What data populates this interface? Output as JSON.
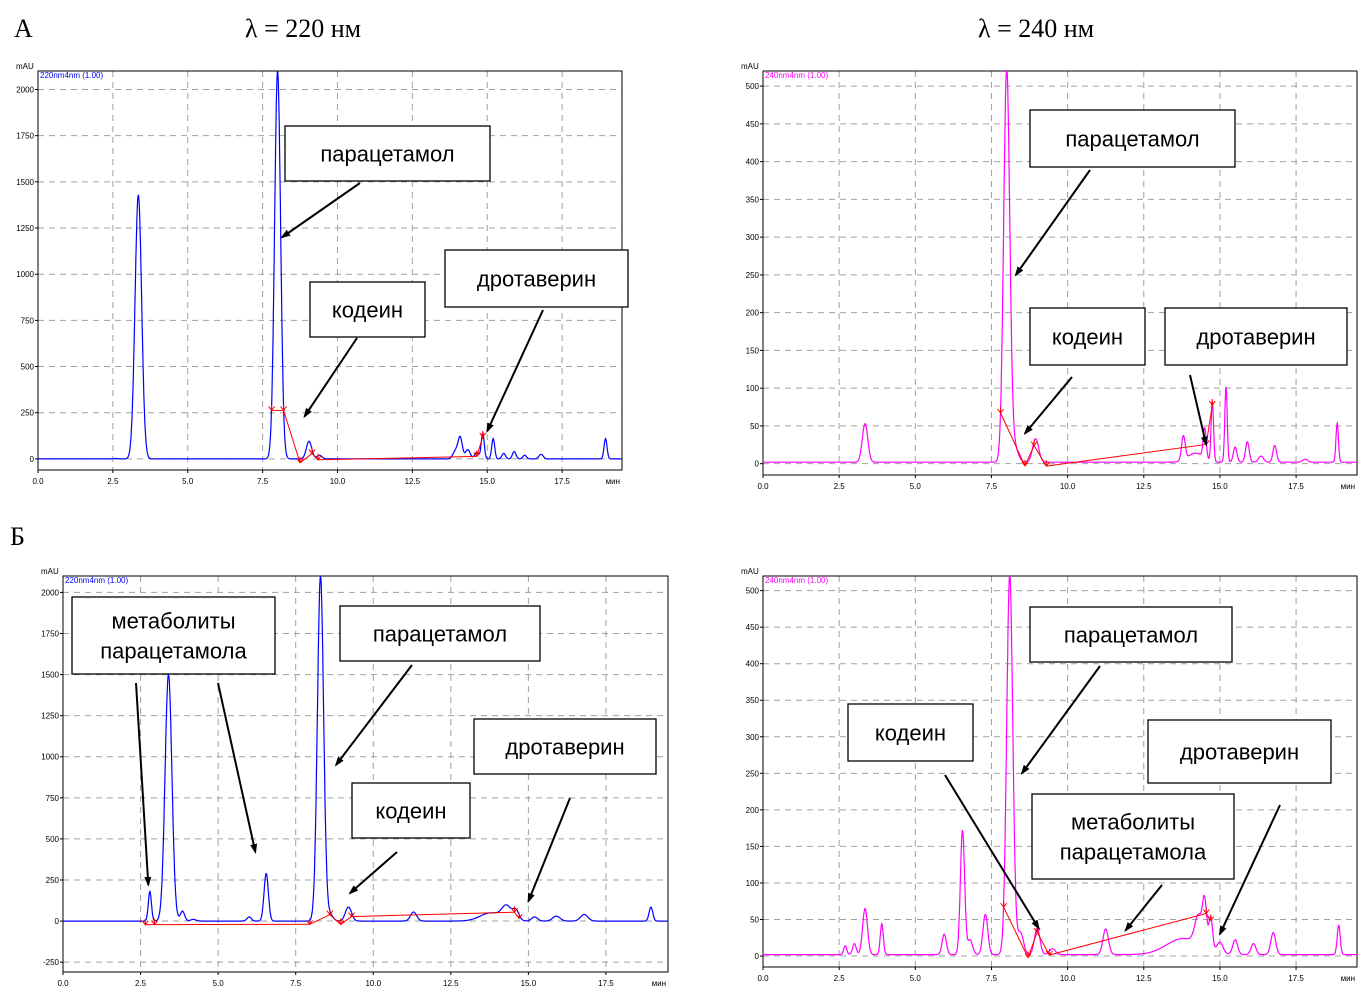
{
  "headers": {
    "section_a": "А",
    "section_b": "Б",
    "wavelength_220": "λ = 220 нм",
    "wavelength_240": "λ = 240 нм"
  },
  "colors": {
    "trace_220": "#0000ff",
    "trace_240": "#ff00ff",
    "integration_marks": "#ff0000",
    "grid": "#a0a0a0"
  },
  "chart_data": [
    {
      "id": "A-220",
      "type": "line",
      "channel_label": "220nm4nm (1.00)",
      "ylabel": "mAU",
      "xunit": "мин",
      "xlim": [
        0,
        19.5
      ],
      "ylim": [
        -60,
        2100
      ],
      "xticks": [
        "0.0",
        "2.5",
        "5.0",
        "7.5",
        "10.0",
        "12.5",
        "15.0",
        "17.5"
      ],
      "yticks": [
        0,
        250,
        500,
        750,
        1000,
        1250,
        1500,
        1750,
        2000
      ],
      "baseline": 0,
      "peaks": [
        [
          2.6,
          2,
          0.07
        ],
        [
          3.35,
          1430,
          0.11
        ],
        [
          8.0,
          2100,
          0.1
        ],
        [
          9.05,
          95,
          0.09
        ],
        [
          9.4,
          20,
          0.08
        ],
        [
          13.95,
          45,
          0.09
        ],
        [
          14.1,
          110,
          0.07
        ],
        [
          14.35,
          50,
          0.08
        ],
        [
          14.65,
          35,
          0.07
        ],
        [
          14.85,
          140,
          0.05
        ],
        [
          15.2,
          110,
          0.05
        ],
        [
          15.55,
          30,
          0.06
        ],
        [
          15.9,
          40,
          0.06
        ],
        [
          16.25,
          20,
          0.06
        ],
        [
          16.8,
          25,
          0.07
        ],
        [
          18.95,
          110,
          0.05
        ]
      ],
      "marks": [
        7.8,
        8.2,
        8.75,
        9.15,
        9.35,
        14.65,
        14.85
      ],
      "annotations": [
        {
          "text": "парацетамол",
          "target": [
            8.15,
            1200
          ]
        },
        {
          "text": "кодеин",
          "target": [
            8.9,
            230
          ]
        },
        {
          "text": "дротаверин",
          "target": [
            15.0,
            150
          ]
        }
      ]
    },
    {
      "id": "A-240",
      "type": "line",
      "channel_label": "240nm4nm (1.00)",
      "ylabel": "mAU",
      "xunit": "мин",
      "xlim": [
        0,
        19.5
      ],
      "ylim": [
        -15,
        520
      ],
      "xticks": [
        "0.0",
        "2.5",
        "5.0",
        "7.5",
        "10.0",
        "12.5",
        "15.0",
        "17.5"
      ],
      "yticks": [
        0,
        50,
        100,
        150,
        200,
        250,
        300,
        350,
        400,
        450,
        500
      ],
      "baseline": 2,
      "peaks": [
        [
          3.35,
          51,
          0.09
        ],
        [
          8.0,
          520,
          0.1
        ],
        [
          8.25,
          20,
          0.12
        ],
        [
          8.95,
          31,
          0.1
        ],
        [
          13.8,
          32,
          0.06
        ],
        [
          14.2,
          12,
          0.25
        ],
        [
          14.5,
          40,
          0.05
        ],
        [
          14.75,
          80,
          0.04
        ],
        [
          15.2,
          100,
          0.04
        ],
        [
          15.5,
          20,
          0.06
        ],
        [
          15.9,
          27,
          0.06
        ],
        [
          16.35,
          8,
          0.08
        ],
        [
          16.8,
          22,
          0.06
        ],
        [
          17.8,
          4,
          0.08
        ],
        [
          18.85,
          52,
          0.04
        ]
      ],
      "marks": [
        7.8,
        8.6,
        8.9,
        9.3,
        14.55,
        14.75
      ],
      "annotations": [
        {
          "text": "парацетамол",
          "target": [
            8.3,
            250
          ]
        },
        {
          "text": "кодеин",
          "target": [
            8.6,
            40
          ]
        },
        {
          "text": "дротаверин",
          "target": [
            14.55,
            25
          ]
        }
      ]
    },
    {
      "id": "B-220",
      "type": "line",
      "channel_label": "220nm4nm (1.00)",
      "ylabel": "mAU",
      "xunit": "мин",
      "xlim": [
        0,
        19.5
      ],
      "ylim": [
        -310,
        2100
      ],
      "xticks": [
        "0.0",
        "2.5",
        "5.0",
        "7.5",
        "10.0",
        "12.5",
        "15.0",
        "17.5"
      ],
      "yticks": [
        -250,
        0,
        250,
        500,
        750,
        1000,
        1250,
        1500,
        1750,
        2000
      ],
      "baseline": 0,
      "peaks": [
        [
          2.8,
          180,
          0.05
        ],
        [
          3.4,
          1500,
          0.11
        ],
        [
          3.85,
          60,
          0.07
        ],
        [
          4.2,
          10,
          0.09
        ],
        [
          6.0,
          25,
          0.07
        ],
        [
          6.55,
          290,
          0.07
        ],
        [
          8.3,
          2100,
          0.1
        ],
        [
          8.6,
          40,
          0.1
        ],
        [
          9.2,
          85,
          0.1
        ],
        [
          11.3,
          55,
          0.1
        ],
        [
          13.8,
          50,
          0.35
        ],
        [
          14.3,
          80,
          0.15
        ],
        [
          14.6,
          60,
          0.1
        ],
        [
          15.2,
          25,
          0.1
        ],
        [
          15.9,
          30,
          0.12
        ],
        [
          16.8,
          40,
          0.12
        ],
        [
          18.95,
          85,
          0.06
        ]
      ],
      "marks": [
        2.65,
        2.95,
        7.95,
        8.6,
        8.95,
        9.3,
        14.55,
        14.7
      ],
      "annotations": [
        {
          "text": "метаболиты парацетамола",
          "targets": [
            [
              2.75,
              220
            ],
            [
              6.2,
              420
            ]
          ]
        },
        {
          "text": "парацетамол",
          "target": [
            8.8,
            950
          ]
        },
        {
          "text": "кодеин",
          "target": [
            9.25,
            170
          ]
        },
        {
          "text": "дротаверин",
          "target": [
            15.0,
            120
          ]
        }
      ]
    },
    {
      "id": "B-240",
      "type": "line",
      "channel_label": "240nm4nm (1.00)",
      "ylabel": "mAU",
      "xunit": "мин",
      "xlim": [
        0,
        19.5
      ],
      "ylim": [
        -15,
        520
      ],
      "xticks": [
        "0.0",
        "2.5",
        "5.0",
        "7.5",
        "10.0",
        "12.5",
        "15.0",
        "17.5"
      ],
      "yticks": [
        0,
        50,
        100,
        150,
        200,
        250,
        300,
        350,
        400,
        450,
        500
      ],
      "baseline": 2,
      "peaks": [
        [
          2.7,
          12,
          0.05
        ],
        [
          3.0,
          15,
          0.06
        ],
        [
          3.35,
          63,
          0.08
        ],
        [
          3.9,
          42,
          0.05
        ],
        [
          5.95,
          28,
          0.07
        ],
        [
          6.55,
          170,
          0.07
        ],
        [
          6.8,
          20,
          0.08
        ],
        [
          7.3,
          55,
          0.08
        ],
        [
          8.1,
          520,
          0.1
        ],
        [
          8.45,
          30,
          0.1
        ],
        [
          9.0,
          36,
          0.09
        ],
        [
          9.5,
          8,
          0.1
        ],
        [
          11.25,
          35,
          0.09
        ],
        [
          13.8,
          22,
          0.55
        ],
        [
          14.3,
          40,
          0.12
        ],
        [
          14.5,
          60,
          0.07
        ],
        [
          14.7,
          45,
          0.06
        ],
        [
          15.0,
          15,
          0.1
        ],
        [
          15.5,
          20,
          0.08
        ],
        [
          16.1,
          15,
          0.08
        ],
        [
          16.75,
          30,
          0.08
        ],
        [
          18.9,
          40,
          0.05
        ]
      ],
      "marks": [
        7.9,
        8.7,
        9.0,
        9.4,
        14.55,
        14.7
      ],
      "annotations": [
        {
          "text": "парацетамол",
          "target": [
            8.5,
            250
          ]
        },
        {
          "text": "кодеин",
          "target": [
            9.05,
            38
          ]
        },
        {
          "text": "метаболиты парацетамола",
          "target": [
            11.9,
            35
          ]
        },
        {
          "text": "дротаверин",
          "target": [
            15.0,
            30
          ]
        }
      ]
    }
  ]
}
